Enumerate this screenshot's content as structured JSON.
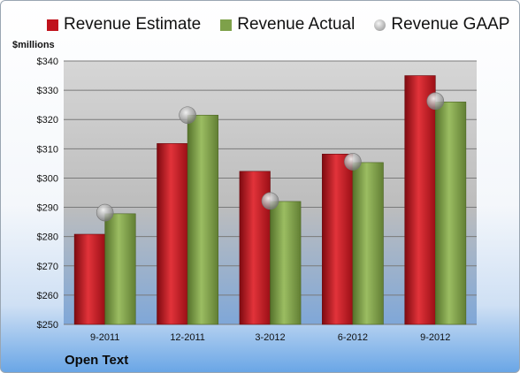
{
  "colors": {
    "estimate": "#c0121c",
    "actual": "#7ea14a",
    "gaap": "#b4b4b4"
  },
  "company": "Open Text",
  "chart_data": {
    "type": "bar",
    "ylabel": "$millions",
    "ylim": [
      250,
      340
    ],
    "yticks": [
      "$250",
      "$260",
      "$270",
      "$280",
      "$290",
      "$300",
      "$310",
      "$320",
      "$330",
      "$340"
    ],
    "categories": [
      "9-2011",
      "12-2011",
      "3-2012",
      "6-2012",
      "9-2012"
    ],
    "series": [
      {
        "name": "Revenue Estimate",
        "kind": "bar",
        "values": [
          280.8,
          311.8,
          302.3,
          308.2,
          335.0
        ]
      },
      {
        "name": "Revenue Actual",
        "kind": "bar",
        "values": [
          287.8,
          321.5,
          292.0,
          305.3,
          326.0
        ]
      },
      {
        "name": "Revenue GAAP",
        "kind": "marker",
        "values": [
          288.2,
          321.5,
          292.2,
          305.6,
          326.3
        ]
      }
    ],
    "grid": true,
    "legend": "top"
  }
}
